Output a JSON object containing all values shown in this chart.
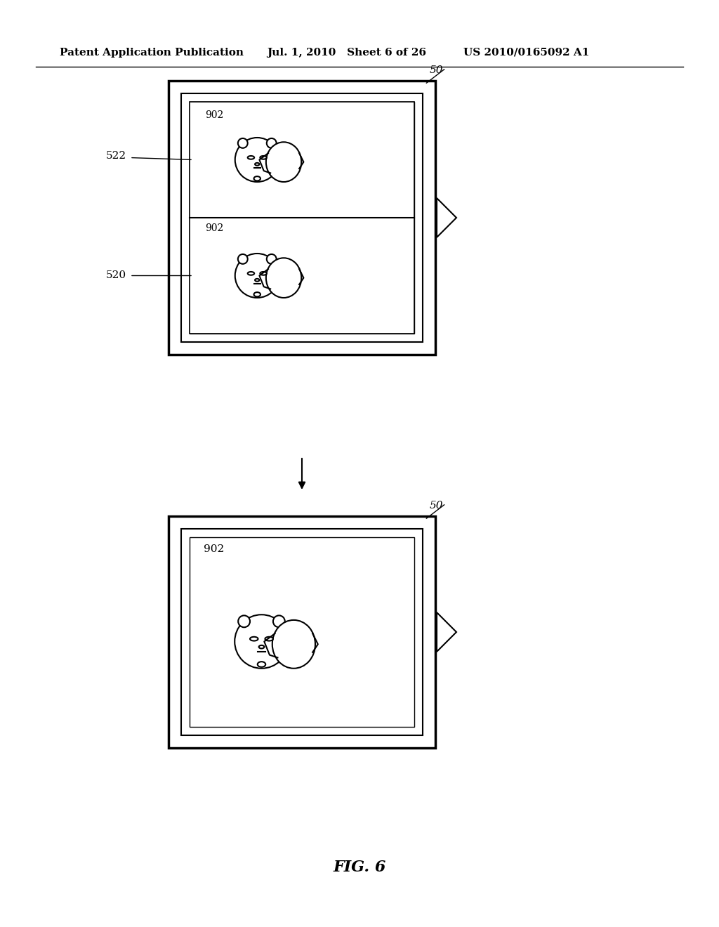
{
  "bg_color": "#ffffff",
  "header_left": "Patent Application Publication",
  "header_mid": "Jul. 1, 2010   Sheet 6 of 26",
  "header_right": "US 2010/0165092 A1",
  "fig_label": "FIG. 6",
  "top_device_label": "50",
  "top_inner_label1": "522",
  "top_inner_label2": "520",
  "bottom_device_label": "50",
  "figure_label_902": "902"
}
